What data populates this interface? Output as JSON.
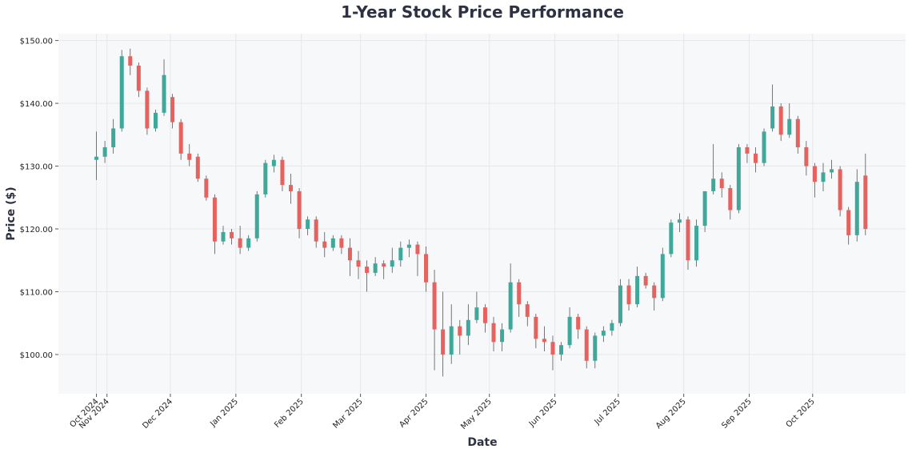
{
  "chart_data": {
    "type": "candlestick",
    "title": "1-Year Stock Price Performance",
    "xlabel": "Date",
    "ylabel": "Price ($)",
    "xlim": [
      "2024-10-09",
      "2025-11-14"
    ],
    "ylim": [
      93.75,
      151.1
    ],
    "grid": true,
    "colors": {
      "up": "#3fa89b",
      "down": "#e5625e",
      "wick": "#555555",
      "background": "#f7f8fa",
      "text": "#2d3142"
    },
    "yticks": [
      {
        "value": 100,
        "label": "$100.00"
      },
      {
        "value": 110,
        "label": "$110.00"
      },
      {
        "value": 120,
        "label": "$120.00"
      },
      {
        "value": 130,
        "label": "$130.00"
      },
      {
        "value": 140,
        "label": "$140.00"
      },
      {
        "value": 150,
        "label": "$150.00"
      }
    ],
    "xticks": [
      {
        "date": "2024-10-27",
        "label": "Oct 2024"
      },
      {
        "date": "2024-11-01",
        "label": "Nov 2024"
      },
      {
        "date": "2024-12-01",
        "label": "Dec 2024"
      },
      {
        "date": "2025-01-01",
        "label": "Jan 2025"
      },
      {
        "date": "2025-02-01",
        "label": "Feb 2025"
      },
      {
        "date": "2025-03-01",
        "label": "Mar 2025"
      },
      {
        "date": "2025-04-01",
        "label": "Apr 2025"
      },
      {
        "date": "2025-05-01",
        "label": "May 2025"
      },
      {
        "date": "2025-06-01",
        "label": "Jun 2025"
      },
      {
        "date": "2025-07-01",
        "label": "Jul 2025"
      },
      {
        "date": "2025-08-01",
        "label": "Aug 2025"
      },
      {
        "date": "2025-09-01",
        "label": "Sep 2025"
      },
      {
        "date": "2025-10-01",
        "label": "Oct 2025"
      }
    ],
    "columns": [
      "date",
      "open",
      "high",
      "low",
      "close"
    ],
    "candles": [
      [
        "2024-10-27",
        131,
        135.5,
        127.8,
        131.5
      ],
      [
        "2024-10-31",
        131.5,
        134,
        130.5,
        133
      ],
      [
        "2024-11-04",
        133,
        137.5,
        132,
        136
      ],
      [
        "2024-11-08",
        136,
        148.5,
        135.5,
        147.5
      ],
      [
        "2024-11-12",
        147.5,
        148.7,
        144.5,
        146
      ],
      [
        "2024-11-16",
        146,
        146.5,
        141,
        142
      ],
      [
        "2024-11-20",
        142,
        142.5,
        135,
        136
      ],
      [
        "2024-11-24",
        136,
        139,
        135.5,
        138.5
      ],
      [
        "2024-11-28",
        138.5,
        147,
        138,
        144.5
      ],
      [
        "2024-12-02",
        141,
        141.5,
        136,
        137
      ],
      [
        "2024-12-06",
        137,
        137.5,
        131,
        132
      ],
      [
        "2024-12-10",
        132,
        133.5,
        130,
        131
      ],
      [
        "2024-12-14",
        131.5,
        132,
        127.5,
        128
      ],
      [
        "2024-12-18",
        128,
        128.5,
        124.5,
        125
      ],
      [
        "2024-12-22",
        125,
        125.5,
        116,
        118
      ],
      [
        "2024-12-26",
        118,
        120.5,
        117.5,
        119.5
      ],
      [
        "2024-12-30",
        119.5,
        120,
        117.5,
        118.5
      ],
      [
        "2025-01-03",
        118.5,
        120.5,
        116,
        117
      ],
      [
        "2025-01-07",
        117,
        119,
        116.5,
        118.5
      ],
      [
        "2025-01-11",
        118.5,
        126,
        118,
        125.5
      ],
      [
        "2025-01-15",
        125.5,
        131,
        125,
        130.5
      ],
      [
        "2025-01-19",
        130,
        131.8,
        129,
        131
      ],
      [
        "2025-01-23",
        131,
        131.5,
        126,
        127
      ],
      [
        "2025-01-27",
        127,
        128.8,
        124,
        126
      ],
      [
        "2025-01-31",
        126,
        126.5,
        118.5,
        120
      ],
      [
        "2025-02-04",
        120,
        122,
        119,
        121.5
      ],
      [
        "2025-02-08",
        121.5,
        122,
        117,
        118
      ],
      [
        "2025-02-12",
        118,
        119.5,
        115.5,
        117
      ],
      [
        "2025-02-16",
        117,
        119,
        116.5,
        118.5
      ],
      [
        "2025-02-20",
        118.5,
        119,
        116,
        117
      ],
      [
        "2025-02-24",
        117,
        118.5,
        112.5,
        115
      ],
      [
        "2025-02-28",
        115,
        116.5,
        112,
        114
      ],
      [
        "2025-03-04",
        114,
        115,
        110,
        113
      ],
      [
        "2025-03-08",
        113,
        115.5,
        112.5,
        114.5
      ],
      [
        "2025-03-12",
        114.5,
        115,
        112,
        114
      ],
      [
        "2025-03-16",
        114,
        117,
        113,
        115
      ],
      [
        "2025-03-20",
        115,
        118,
        114,
        117
      ],
      [
        "2025-03-24",
        117,
        118.3,
        115.5,
        117.5
      ],
      [
        "2025-03-28",
        117.5,
        118,
        112.5,
        116
      ],
      [
        "2025-04-01",
        116,
        117.2,
        110,
        111.5
      ],
      [
        "2025-04-05",
        111.5,
        113.5,
        97.5,
        104
      ],
      [
        "2025-04-09",
        104,
        110,
        96.5,
        100
      ],
      [
        "2025-04-13",
        100,
        108,
        98.5,
        104.5
      ],
      [
        "2025-04-17",
        104.5,
        105.5,
        100,
        103
      ],
      [
        "2025-04-21",
        103,
        108,
        101.5,
        105.5
      ],
      [
        "2025-04-25",
        105.5,
        110,
        105,
        107.5
      ],
      [
        "2025-04-29",
        107.5,
        108,
        103.5,
        105
      ],
      [
        "2025-05-03",
        105,
        106,
        100.5,
        102
      ],
      [
        "2025-05-07",
        102,
        105,
        100.5,
        104
      ],
      [
        "2025-05-11",
        104,
        114.5,
        103.5,
        111.5
      ],
      [
        "2025-05-15",
        111.5,
        112,
        106,
        108
      ],
      [
        "2025-05-19",
        108,
        108.5,
        104.5,
        106
      ],
      [
        "2025-05-23",
        106,
        106.5,
        101,
        102.5
      ],
      [
        "2025-05-27",
        102.5,
        104.5,
        100.5,
        102
      ],
      [
        "2025-05-31",
        102,
        103,
        97.5,
        100
      ],
      [
        "2025-06-04",
        100,
        102,
        99,
        101.5
      ],
      [
        "2025-06-08",
        101.5,
        107.5,
        101,
        106
      ],
      [
        "2025-06-12",
        106,
        106.5,
        102.5,
        104
      ],
      [
        "2025-06-16",
        104,
        104.5,
        97.8,
        99
      ],
      [
        "2025-06-20",
        99,
        103.5,
        97.8,
        103
      ],
      [
        "2025-06-24",
        103,
        104.5,
        102,
        103.8
      ],
      [
        "2025-06-28",
        103.8,
        105.5,
        103,
        105
      ],
      [
        "2025-07-02",
        105,
        112,
        104.5,
        111
      ],
      [
        "2025-07-06",
        111,
        112,
        107,
        108
      ],
      [
        "2025-07-10",
        108,
        114,
        107.5,
        112.5
      ],
      [
        "2025-07-14",
        112.5,
        113,
        110.5,
        111
      ],
      [
        "2025-07-18",
        111,
        111.5,
        107,
        109
      ],
      [
        "2025-07-22",
        109,
        117,
        108.5,
        116
      ],
      [
        "2025-07-26",
        116,
        121.5,
        115.5,
        121
      ],
      [
        "2025-07-30",
        121,
        122.5,
        119.5,
        121.5
      ],
      [
        "2025-08-03",
        121.5,
        122,
        113.5,
        115
      ],
      [
        "2025-08-07",
        115,
        121.5,
        114,
        120.5
      ],
      [
        "2025-08-11",
        120.5,
        126,
        119.5,
        126
      ],
      [
        "2025-08-15",
        126,
        133.5,
        125.5,
        128
      ],
      [
        "2025-08-19",
        128,
        129,
        125,
        126.5
      ],
      [
        "2025-08-23",
        126.5,
        127,
        121.5,
        123
      ],
      [
        "2025-08-27",
        123,
        133.5,
        122.5,
        133
      ],
      [
        "2025-08-31",
        133,
        133.5,
        130.5,
        132
      ],
      [
        "2025-09-04",
        132,
        133,
        129,
        130.5
      ],
      [
        "2025-09-08",
        130.5,
        136,
        130,
        135.5
      ],
      [
        "2025-09-12",
        136,
        143,
        135.5,
        139.5
      ],
      [
        "2025-09-16",
        139.5,
        140,
        134,
        135
      ],
      [
        "2025-09-20",
        135,
        140,
        134.5,
        137.5
      ],
      [
        "2025-09-24",
        137.5,
        138,
        132,
        133
      ],
      [
        "2025-09-28",
        133,
        134,
        128.5,
        130
      ],
      [
        "2025-10-02",
        130,
        130.5,
        125,
        127.5
      ],
      [
        "2025-10-06",
        127.5,
        130.5,
        126,
        129
      ],
      [
        "2025-10-10",
        129,
        131,
        128,
        129.5
      ],
      [
        "2025-10-14",
        129.5,
        130,
        122,
        123
      ],
      [
        "2025-10-18",
        123,
        123.5,
        117.5,
        119
      ],
      [
        "2025-10-22",
        119,
        129.5,
        118,
        127.5
      ],
      [
        "2025-10-26",
        128.5,
        132,
        119,
        120
      ]
    ]
  }
}
